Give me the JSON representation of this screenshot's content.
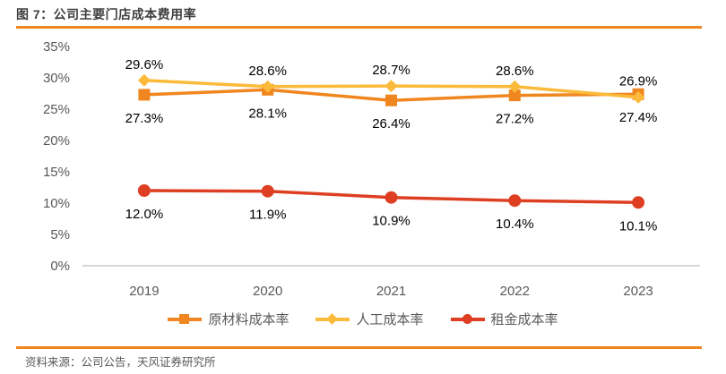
{
  "header": {
    "title": "图 7：公司主要门店成本费用率"
  },
  "footer": {
    "source": "资料来源：公司公告，天风证券研究所"
  },
  "colors": {
    "accent_rule": "#F0861F",
    "title_text": "#3F3F3F",
    "axis_text": "#595959",
    "axis_line": "#C9C9C9",
    "data_label": "#000000"
  },
  "chart_data": {
    "type": "line",
    "title": "公司主要门店成本费用率",
    "categories": [
      "2019",
      "2020",
      "2021",
      "2022",
      "2023"
    ],
    "series": [
      {
        "key": "raw-material-cost-rate",
        "name": "原材料成本率",
        "color": "#F0861F",
        "marker": "square",
        "label_position": "below",
        "values": [
          27.3,
          28.1,
          26.4,
          27.2,
          27.4
        ]
      },
      {
        "key": "labor-cost-rate",
        "name": "人工成本率",
        "color": "#FBBA39",
        "marker": "diamond",
        "label_position": "above",
        "values": [
          29.6,
          28.6,
          28.7,
          28.6,
          26.9
        ]
      },
      {
        "key": "rent-cost-rate",
        "name": "租金成本率",
        "color": "#DE3F23",
        "marker": "circle",
        "label_position": "below",
        "values": [
          12.0,
          11.9,
          10.9,
          10.4,
          10.1
        ]
      }
    ],
    "ylim": [
      0,
      35
    ],
    "ytick_step": 5,
    "ytick_suffix": "%",
    "value_suffix": "%",
    "value_decimals": 1,
    "grid": false,
    "legend_position": "bottom"
  }
}
